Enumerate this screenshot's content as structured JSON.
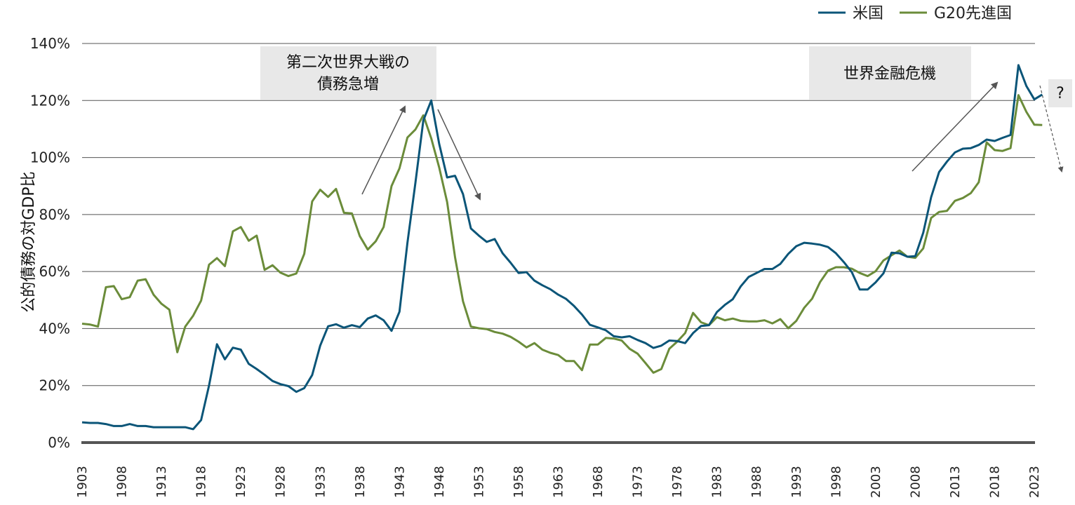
{
  "chart_data": {
    "type": "line",
    "title": "",
    "xlabel": "",
    "ylabel": "公的債務の対GDP比",
    "ylim": [
      0,
      140
    ],
    "yticks": [
      "0%",
      "20%",
      "40%",
      "60%",
      "80%",
      "100%",
      "120%",
      "140%"
    ],
    "xlim": [
      1903,
      2023
    ],
    "xticks": [
      "1903",
      "1908",
      "1913",
      "1918",
      "1923",
      "1928",
      "1933",
      "1938",
      "1943",
      "1948",
      "1953",
      "1958",
      "1963",
      "1968",
      "1973",
      "1978",
      "1983",
      "1988",
      "1993",
      "1998",
      "2003",
      "2008",
      "2013",
      "2018",
      "2023"
    ],
    "grid": true,
    "legend_position": "top-right",
    "colors": {
      "us": "#0b5578",
      "g20": "#6b8c3a",
      "arrow": "#555555",
      "annotation_bg": "#e8e8e8"
    },
    "series": [
      {
        "name": "米国",
        "color": "#0b5578",
        "points": [
          [
            1903,
            7.1
          ],
          [
            1904,
            6.9
          ],
          [
            1905,
            6.9
          ],
          [
            1906,
            6.5
          ],
          [
            1907,
            5.8
          ],
          [
            1908,
            5.8
          ],
          [
            1909,
            6.5
          ],
          [
            1910,
            5.8
          ],
          [
            1911,
            5.8
          ],
          [
            1912,
            5.4
          ],
          [
            1913,
            5.4
          ],
          [
            1914,
            5.4
          ],
          [
            1915,
            5.4
          ],
          [
            1916,
            5.4
          ],
          [
            1917,
            4.7
          ],
          [
            1918,
            7.9
          ],
          [
            1919,
            20
          ],
          [
            1920,
            34.5
          ],
          [
            1921,
            29.2
          ],
          [
            1922,
            33.3
          ],
          [
            1923,
            32.6
          ],
          [
            1924,
            27.6
          ],
          [
            1925,
            25.8
          ],
          [
            1926,
            23.8
          ],
          [
            1927,
            21.6
          ],
          [
            1928,
            20.5
          ],
          [
            1929,
            19.8
          ],
          [
            1930,
            17.8
          ],
          [
            1931,
            19.1
          ],
          [
            1932,
            23.7
          ],
          [
            1933,
            34
          ],
          [
            1934,
            40.8
          ],
          [
            1935,
            41.5
          ],
          [
            1936,
            40.3
          ],
          [
            1937,
            41.2
          ],
          [
            1938,
            40.5
          ],
          [
            1939,
            43.5
          ],
          [
            1940,
            44.6
          ],
          [
            1941,
            42.9
          ],
          [
            1942,
            39.2
          ],
          [
            1943,
            45.9
          ],
          [
            1944,
            70
          ],
          [
            1945,
            91.1
          ],
          [
            1946,
            113
          ],
          [
            1947,
            120
          ],
          [
            1948,
            104.8
          ],
          [
            1949,
            93
          ],
          [
            1950,
            93.6
          ],
          [
            1951,
            87.2
          ],
          [
            1952,
            75.1
          ],
          [
            1953,
            72.6
          ],
          [
            1954,
            70.4
          ],
          [
            1955,
            71.4
          ],
          [
            1956,
            66.4
          ],
          [
            1957,
            63.1
          ],
          [
            1958,
            59.5
          ],
          [
            1959,
            59.8
          ],
          [
            1960,
            56.8
          ],
          [
            1961,
            55.2
          ],
          [
            1962,
            53.8
          ],
          [
            1963,
            51.9
          ],
          [
            1964,
            50.4
          ],
          [
            1965,
            47.9
          ],
          [
            1966,
            44.9
          ],
          [
            1967,
            41.3
          ],
          [
            1968,
            40.4
          ],
          [
            1969,
            39.4
          ],
          [
            1970,
            37.3
          ],
          [
            1971,
            36.9
          ],
          [
            1972,
            37.3
          ],
          [
            1973,
            36
          ],
          [
            1974,
            34.9
          ],
          [
            1975,
            33.2
          ],
          [
            1976,
            34
          ],
          [
            1977,
            35.8
          ],
          [
            1978,
            35.6
          ],
          [
            1979,
            34.9
          ],
          [
            1980,
            38.4
          ],
          [
            1981,
            40.9
          ],
          [
            1982,
            41.2
          ],
          [
            1983,
            45.8
          ],
          [
            1984,
            48.3
          ],
          [
            1985,
            50.3
          ],
          [
            1986,
            54.8
          ],
          [
            1987,
            58.1
          ],
          [
            1988,
            59.5
          ],
          [
            1989,
            60.9
          ],
          [
            1990,
            60.9
          ],
          [
            1991,
            62.7
          ],
          [
            1992,
            66.2
          ],
          [
            1993,
            68.9
          ],
          [
            1994,
            70.1
          ],
          [
            1995,
            69.8
          ],
          [
            1996,
            69.4
          ],
          [
            1997,
            68.6
          ],
          [
            1998,
            66.4
          ],
          [
            1999,
            63.3
          ],
          [
            2000,
            59.8
          ],
          [
            2001,
            53.7
          ],
          [
            2002,
            53.7
          ],
          [
            2003,
            56.2
          ],
          [
            2004,
            59.4
          ],
          [
            2005,
            66.6
          ],
          [
            2006,
            66.4
          ],
          [
            2007,
            65.2
          ],
          [
            2008,
            65.4
          ],
          [
            2009,
            73.6
          ],
          [
            2010,
            86.1
          ],
          [
            2011,
            94.9
          ],
          [
            2012,
            98.6
          ],
          [
            2013,
            101.8
          ],
          [
            2014,
            103.1
          ],
          [
            2015,
            103.3
          ],
          [
            2016,
            104.4
          ],
          [
            2017,
            106.3
          ],
          [
            2018,
            105.8
          ],
          [
            2019,
            106.9
          ],
          [
            2020,
            107.9
          ],
          [
            2021,
            132.4
          ],
          [
            2022,
            125.1
          ],
          [
            2023,
            120.4
          ],
          [
            2024,
            122.1
          ]
        ]
      },
      {
        "name": "G20先進国",
        "color": "#6b8c3a",
        "points": [
          [
            1903,
            41.7
          ],
          [
            1904,
            41.4
          ],
          [
            1905,
            40.7
          ],
          [
            1906,
            54.5
          ],
          [
            1907,
            54.9
          ],
          [
            1908,
            50.3
          ],
          [
            1909,
            51
          ],
          [
            1910,
            56.8
          ],
          [
            1911,
            57.3
          ],
          [
            1912,
            51.9
          ],
          [
            1913,
            48.7
          ],
          [
            1914,
            46.6
          ],
          [
            1915,
            31.7
          ],
          [
            1916,
            40.7
          ],
          [
            1917,
            44.5
          ],
          [
            1918,
            49.8
          ],
          [
            1919,
            62.4
          ],
          [
            1920,
            64.7
          ],
          [
            1921,
            61.9
          ],
          [
            1922,
            74.1
          ],
          [
            1923,
            75.6
          ],
          [
            1924,
            70.8
          ],
          [
            1925,
            72.6
          ],
          [
            1926,
            60.6
          ],
          [
            1927,
            62.2
          ],
          [
            1928,
            59.6
          ],
          [
            1929,
            58.4
          ],
          [
            1930,
            59.3
          ],
          [
            1931,
            66.2
          ],
          [
            1932,
            84.6
          ],
          [
            1933,
            88.7
          ],
          [
            1934,
            86.2
          ],
          [
            1935,
            89
          ],
          [
            1936,
            80.6
          ],
          [
            1937,
            80.4
          ],
          [
            1938,
            72.4
          ],
          [
            1939,
            67.7
          ],
          [
            1940,
            70.6
          ],
          [
            1941,
            75.6
          ],
          [
            1942,
            90
          ],
          [
            1943,
            96.2
          ],
          [
            1944,
            107
          ],
          [
            1945,
            109.8
          ],
          [
            1946,
            114.8
          ],
          [
            1947,
            106.7
          ],
          [
            1948,
            96.5
          ],
          [
            1949,
            84.4
          ],
          [
            1950,
            65
          ],
          [
            1951,
            49.6
          ],
          [
            1952,
            40.7
          ],
          [
            1953,
            40.1
          ],
          [
            1954,
            39.8
          ],
          [
            1955,
            38.8
          ],
          [
            1956,
            38.2
          ],
          [
            1957,
            37.1
          ],
          [
            1958,
            35.4
          ],
          [
            1959,
            33.4
          ],
          [
            1960,
            34.9
          ],
          [
            1961,
            32.6
          ],
          [
            1962,
            31.5
          ],
          [
            1963,
            30.7
          ],
          [
            1964,
            28.6
          ],
          [
            1965,
            28.6
          ],
          [
            1966,
            25.4
          ],
          [
            1967,
            34.4
          ],
          [
            1968,
            34.4
          ],
          [
            1969,
            36.7
          ],
          [
            1970,
            36.5
          ],
          [
            1971,
            35.8
          ],
          [
            1972,
            32.9
          ],
          [
            1973,
            31.2
          ],
          [
            1974,
            27.9
          ],
          [
            1975,
            24.5
          ],
          [
            1976,
            25.8
          ],
          [
            1977,
            32.9
          ],
          [
            1978,
            35.4
          ],
          [
            1979,
            38.4
          ],
          [
            1980,
            45.5
          ],
          [
            1981,
            42.2
          ],
          [
            1982,
            41.2
          ],
          [
            1983,
            44
          ],
          [
            1984,
            42.9
          ],
          [
            1985,
            43.5
          ],
          [
            1986,
            42.7
          ],
          [
            1987,
            42.5
          ],
          [
            1988,
            42.5
          ],
          [
            1989,
            42.9
          ],
          [
            1990,
            41.8
          ],
          [
            1991,
            43.3
          ],
          [
            1992,
            40.1
          ],
          [
            1993,
            42.7
          ],
          [
            1994,
            47.3
          ],
          [
            1995,
            50.5
          ],
          [
            1996,
            56.3
          ],
          [
            1997,
            60.3
          ],
          [
            1998,
            61.5
          ],
          [
            1999,
            61.5
          ],
          [
            2000,
            61
          ],
          [
            2001,
            59.5
          ],
          [
            2002,
            58.4
          ],
          [
            2003,
            60.1
          ],
          [
            2004,
            63.9
          ],
          [
            2005,
            65.7
          ],
          [
            2006,
            67.4
          ],
          [
            2007,
            65.2
          ],
          [
            2008,
            64.8
          ],
          [
            2009,
            68.1
          ],
          [
            2010,
            78.8
          ],
          [
            2011,
            80.9
          ],
          [
            2012,
            81.3
          ],
          [
            2013,
            84.8
          ],
          [
            2014,
            85.8
          ],
          [
            2015,
            87.5
          ],
          [
            2016,
            91.3
          ],
          [
            2017,
            105.3
          ],
          [
            2018,
            102.6
          ],
          [
            2019,
            102.3
          ],
          [
            2020,
            103.3
          ],
          [
            2021,
            121.9
          ],
          [
            2022,
            116
          ],
          [
            2023,
            111.5
          ],
          [
            2024,
            111.4
          ]
        ]
      }
    ],
    "annotations": [
      {
        "text_lines": [
          "第二次世界大戦の",
          "債務急増"
        ]
      },
      {
        "text_lines": [
          "世界金融危機"
        ]
      },
      {
        "text_lines": [
          "?"
        ]
      }
    ]
  }
}
